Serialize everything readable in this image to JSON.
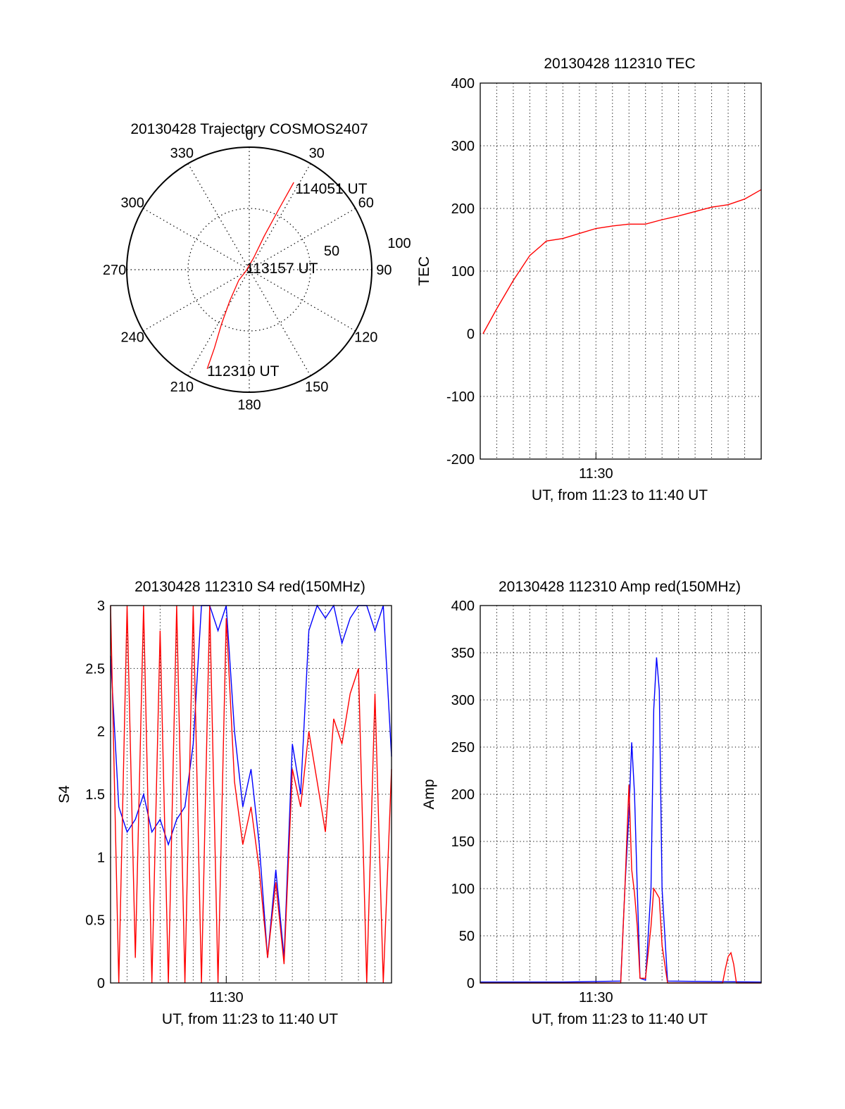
{
  "chart_data": [
    {
      "type": "polar",
      "title": "20130428 Trajectory COSMOS2407",
      "angle_labels": [
        "0",
        "30",
        "60",
        "90",
        "120",
        "150",
        "180",
        "210",
        "240",
        "270",
        "300",
        "330"
      ],
      "radial_labels": [
        "50",
        "100"
      ],
      "radial_range": [
        0,
        100
      ],
      "grid": true,
      "track_color": "#ff0000",
      "trajectory": [
        {
          "az": 203,
          "zen": 88
        },
        {
          "az": 204,
          "zen": 70
        },
        {
          "az": 207,
          "zen": 50
        },
        {
          "az": 212,
          "zen": 30
        },
        {
          "az": 225,
          "zen": 12
        },
        {
          "az": 248,
          "zen": 3
        },
        {
          "az": 20,
          "zen": 10
        },
        {
          "az": 24,
          "zen": 30
        },
        {
          "az": 26,
          "zen": 55
        },
        {
          "az": 27,
          "zen": 80
        }
      ],
      "annotations": [
        {
          "text": "114051 UT",
          "az": 27,
          "zen": 80
        },
        {
          "text": "113157 UT",
          "az": 80,
          "zen": 3
        },
        {
          "text": "112310 UT",
          "az": 203,
          "zen": 88
        }
      ]
    },
    {
      "type": "line",
      "title": "20130428 112310 TEC",
      "xlabel": "UT, from 11:23 to 11:40 UT",
      "ylabel": "TEC",
      "xlim": [
        "11:23",
        "11:40"
      ],
      "x_ticks": [
        "11:30"
      ],
      "ylim": [
        -200,
        400
      ],
      "y_ticks": [
        "400",
        "300",
        "200",
        "100",
        "0",
        "-100",
        "-200"
      ],
      "grid": true,
      "series": [
        {
          "color": "#ff0000",
          "x": [
            "11:23:10",
            "11:24:00",
            "11:25:00",
            "11:26:00",
            "11:26:40",
            "11:27:00",
            "11:28:00",
            "11:29:00",
            "11:30:00",
            "11:31:00",
            "11:32:00",
            "11:33:00",
            "11:34:00",
            "11:35:00",
            "11:36:00",
            "11:37:00",
            "11:38:00",
            "11:39:00",
            "11:40:00"
          ],
          "values": [
            0,
            40,
            85,
            125,
            140,
            148,
            152,
            160,
            168,
            172,
            175,
            175,
            182,
            188,
            195,
            202,
            206,
            215,
            230
          ]
        }
      ]
    },
    {
      "type": "line",
      "title": "20130428 112310 S4 red(150MHz)",
      "xlabel": "UT, from 11:23 to 11:40 UT",
      "ylabel": "S4",
      "xlim": [
        "11:23",
        "11:40"
      ],
      "x_ticks": [
        "11:30"
      ],
      "ylim": [
        0,
        3
      ],
      "y_ticks": [
        "3",
        "2.5",
        "2",
        "1.5",
        "1",
        "0.5",
        "0"
      ],
      "grid": true,
      "series": [
        {
          "color": "#0000ff",
          "x": [
            "11:23:00",
            "11:23:30",
            "11:24:00",
            "11:24:30",
            "11:25:00",
            "11:25:30",
            "11:26:00",
            "11:26:30",
            "11:27:00",
            "11:27:30",
            "11:28:00",
            "11:28:30",
            "11:29:00",
            "11:29:30",
            "11:30:00",
            "11:30:30",
            "11:31:00",
            "11:31:30",
            "11:32:00",
            "11:32:30",
            "11:33:00",
            "11:33:30",
            "11:34:00",
            "11:34:30",
            "11:35:00",
            "11:35:30",
            "11:36:00",
            "11:36:30",
            "11:37:00",
            "11:37:30",
            "11:38:00",
            "11:38:30",
            "11:39:00",
            "11:39:30",
            "11:40:00"
          ],
          "values": [
            2.6,
            1.4,
            1.2,
            1.3,
            1.5,
            1.2,
            1.3,
            1.1,
            1.3,
            1.4,
            1.9,
            3.0,
            3.0,
            2.8,
            3.0,
            2.0,
            1.4,
            1.7,
            1.1,
            0.2,
            0.9,
            0.2,
            1.9,
            1.5,
            2.8,
            3.0,
            2.9,
            3.0,
            2.7,
            2.9,
            3.0,
            3.0,
            2.8,
            3.0,
            1.8
          ]
        },
        {
          "color": "#ff0000",
          "x": [
            "11:23:00",
            "11:23:30",
            "11:24:00",
            "11:24:30",
            "11:25:00",
            "11:25:30",
            "11:26:00",
            "11:26:30",
            "11:27:00",
            "11:27:30",
            "11:28:00",
            "11:28:30",
            "11:29:00",
            "11:29:30",
            "11:30:00",
            "11:30:30",
            "11:31:00",
            "11:31:30",
            "11:32:00",
            "11:32:30",
            "11:33:00",
            "11:33:30",
            "11:34:00",
            "11:34:30",
            "11:35:00",
            "11:35:30",
            "11:36:00",
            "11:36:30",
            "11:37:00",
            "11:37:30",
            "11:38:00",
            "11:38:30",
            "11:39:00",
            "11:39:30",
            "11:40:00"
          ],
          "values": [
            3.0,
            0.0,
            3.0,
            0.2,
            3.0,
            0.0,
            2.8,
            0.0,
            3.0,
            0.0,
            3.0,
            0.0,
            3.0,
            0.0,
            2.9,
            1.6,
            1.1,
            1.4,
            0.9,
            0.2,
            0.8,
            0.15,
            1.7,
            1.4,
            2.0,
            1.6,
            1.2,
            2.1,
            1.9,
            2.3,
            2.5,
            0.0,
            2.3,
            0.0,
            1.7
          ]
        }
      ]
    },
    {
      "type": "line",
      "title": "20130428 112310 Amp red(150MHz)",
      "xlabel": "UT, from 11:23 to 11:40 UT",
      "ylabel": "Amp",
      "xlim": [
        "11:23",
        "11:40"
      ],
      "x_ticks": [
        "11:30"
      ],
      "ylim": [
        0,
        400
      ],
      "y_ticks": [
        "400",
        "350",
        "300",
        "250",
        "200",
        "150",
        "100",
        "50",
        "0"
      ],
      "grid": true,
      "series": [
        {
          "color": "#0000ff",
          "x": [
            "11:23:00",
            "11:28:00",
            "11:31:30",
            "11:31:45",
            "11:32:00",
            "11:32:10",
            "11:32:20",
            "11:32:30",
            "11:32:40",
            "11:33:00",
            "11:33:20",
            "11:33:30",
            "11:33:40",
            "11:33:50",
            "11:34:00",
            "11:34:20",
            "11:40:00"
          ],
          "values": [
            1,
            1,
            2,
            100,
            180,
            255,
            200,
            100,
            5,
            3,
            100,
            290,
            345,
            310,
            100,
            2,
            1
          ]
        },
        {
          "color": "#ff0000",
          "x": [
            "11:23:00",
            "11:31:30",
            "11:31:45",
            "11:32:00",
            "11:32:10",
            "11:32:20",
            "11:32:30",
            "11:32:40",
            "11:33:00",
            "11:33:20",
            "11:33:30",
            "11:33:40",
            "11:33:50",
            "11:34:00",
            "11:34:20",
            "11:37:40",
            "11:37:50",
            "11:38:00",
            "11:38:10",
            "11:38:20",
            "11:38:30",
            "11:40:00"
          ],
          "values": [
            0,
            0,
            100,
            210,
            120,
            95,
            60,
            5,
            5,
            60,
            100,
            95,
            90,
            40,
            0,
            0,
            15,
            28,
            32,
            20,
            0,
            0
          ]
        }
      ]
    }
  ]
}
